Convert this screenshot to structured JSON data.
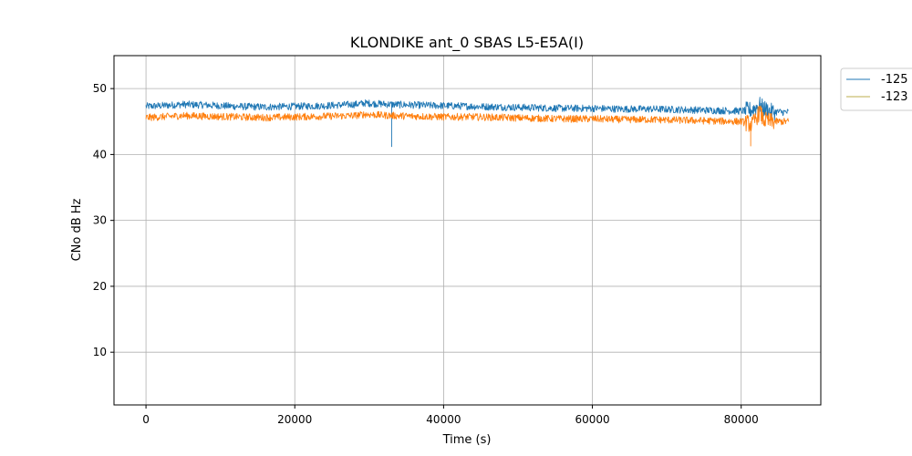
{
  "chart_data": {
    "type": "line",
    "title": "KLONDIKE ant_0 SBAS L5-E5A(I)",
    "xlabel": "Time (s)",
    "ylabel": "CNo dB Hz",
    "xlim": [
      -4300,
      90700
    ],
    "ylim": [
      2,
      55
    ],
    "xticks": [
      0,
      20000,
      40000,
      60000,
      80000
    ],
    "yticks": [
      10,
      20,
      30,
      40,
      50
    ],
    "grid": true,
    "legend_position": "outside-top-right",
    "series": [
      {
        "name": "-125",
        "color": "#1f77b4",
        "x": [
          0,
          2000,
          5000,
          8000,
          12000,
          16000,
          20000,
          24000,
          28000,
          29500,
          31000,
          33000,
          36000,
          40000,
          44000,
          48000,
          52000,
          56000,
          60000,
          64000,
          68000,
          72000,
          76000,
          80000,
          81500,
          82500,
          83000,
          84000,
          86400
        ],
        "y": [
          47.3,
          47.4,
          47.6,
          47.5,
          47.3,
          47.2,
          47.3,
          47.4,
          47.6,
          47.8,
          47.7,
          47.6,
          47.5,
          47.4,
          47.3,
          47.2,
          47.1,
          47.0,
          47.0,
          46.9,
          46.9,
          46.8,
          46.7,
          46.6,
          46.8,
          47.5,
          47.0,
          46.5,
          46.4
        ],
        "dip": {
          "x": 33000,
          "y": 41.2
        }
      },
      {
        "name": "-123",
        "color": "#ff7f0e",
        "x": [
          0,
          2000,
          5000,
          8000,
          12000,
          16000,
          20000,
          24000,
          28000,
          29500,
          31000,
          33000,
          36000,
          40000,
          44000,
          48000,
          52000,
          56000,
          60000,
          64000,
          68000,
          72000,
          76000,
          80000,
          81000,
          81500,
          82500,
          83000,
          84000,
          86400
        ],
        "y": [
          45.6,
          45.7,
          45.9,
          45.8,
          45.7,
          45.6,
          45.7,
          45.8,
          45.9,
          46.1,
          46.0,
          45.9,
          45.8,
          45.7,
          45.7,
          45.6,
          45.5,
          45.4,
          45.4,
          45.3,
          45.3,
          45.2,
          45.1,
          45.0,
          44.7,
          44.5,
          46.5,
          45.2,
          45.0,
          45.0
        ],
        "dip": {
          "x": 81300,
          "y": 41.3
        }
      }
    ]
  }
}
